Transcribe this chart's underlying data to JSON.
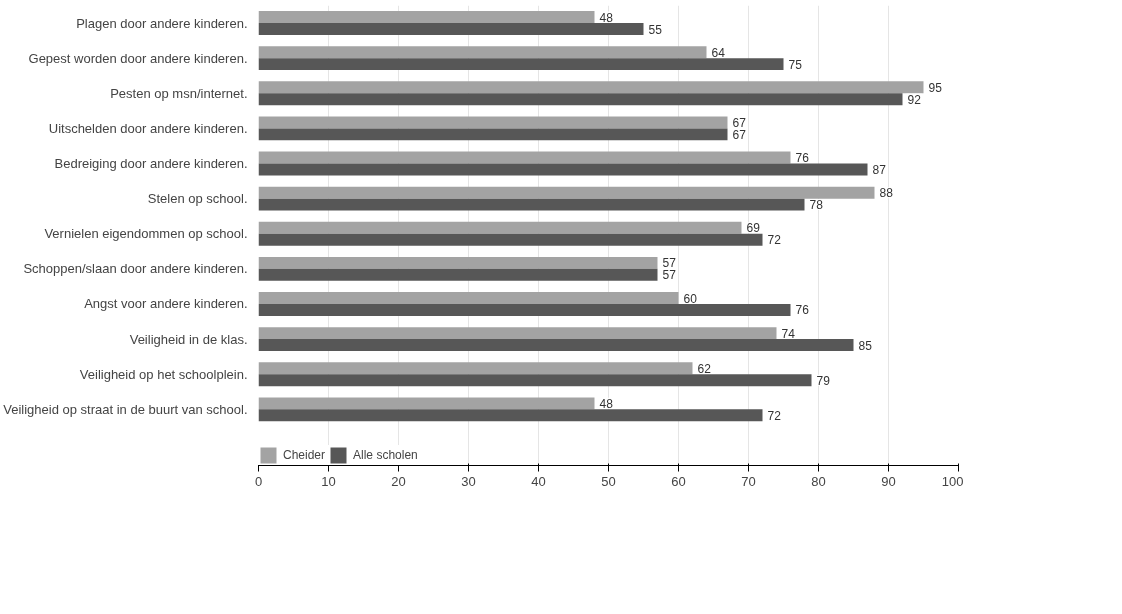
{
  "chart_data": {
    "type": "bar",
    "orientation": "horizontal",
    "categories": [
      "Plagen door andere kinderen.",
      "Gepest worden door andere kinderen.",
      "Pesten op msn/internet.",
      "Uitschelden door andere kinderen.",
      "Bedreiging door andere kinderen.",
      "Stelen op school.",
      "Vernielen eigendommen op school.",
      "Schoppen/slaan door andere kinderen.",
      "Angst voor andere kinderen.",
      "Veiligheid in de klas.",
      "Veiligheid op het schoolplein.",
      "Veiligheid op straat in de buurt van school."
    ],
    "series": [
      {
        "name": "Cheider",
        "color": "#a3a3a3",
        "values": [
          48,
          64,
          95,
          67,
          76,
          88,
          69,
          57,
          60,
          74,
          62,
          48
        ]
      },
      {
        "name": "Alle scholen",
        "color": "#575757",
        "values": [
          55,
          75,
          92,
          67,
          87,
          78,
          72,
          57,
          76,
          85,
          79,
          72
        ]
      }
    ],
    "xlim": [
      0,
      100
    ],
    "xticks": [
      0,
      10,
      20,
      30,
      40,
      50,
      60,
      70,
      80,
      90,
      100
    ],
    "grid": "x",
    "legend": "bottom",
    "data_labels": true
  }
}
